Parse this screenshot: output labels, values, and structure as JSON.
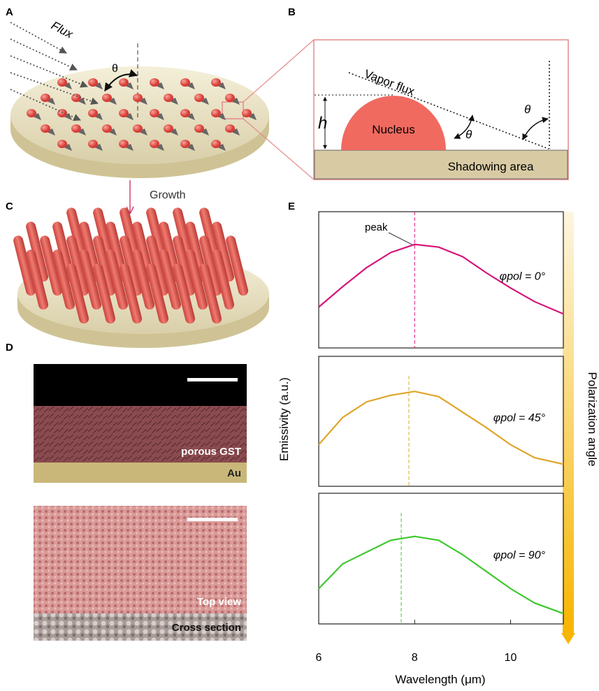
{
  "panel_labels": [
    "A",
    "B",
    "C",
    "D",
    "E"
  ],
  "panel_a": {
    "flux": "Flux",
    "theta": "θ"
  },
  "panel_b": {
    "vapor_flux": "Vapor flux",
    "nucleus": "Nucleus",
    "h": "h",
    "theta": "θ",
    "shadowing_area": "Shadowing area"
  },
  "growth": "Growth",
  "panel_d": {
    "porous_gst": "porous GST",
    "au": "Au",
    "top_view": "Top view",
    "cross_section": "Cross section"
  },
  "chart_data": {
    "type": "line",
    "x_label": "Wavelength (μm)",
    "y_label": "Emissivity (a.u.)",
    "colorbar_label": "Polarization angle",
    "peak_label": "peak",
    "xlim": [
      6,
      11.1
    ],
    "xticks": [
      6,
      8,
      10
    ],
    "ylim": [
      0,
      1
    ],
    "x": [
      6,
      6.5,
      7,
      7.5,
      8,
      8.5,
      9,
      9.5,
      10,
      10.5,
      11.1
    ],
    "peak_x": [
      8.0,
      7.88,
      7.72
    ],
    "series": [
      {
        "name": "φpol = 0°",
        "color": "#d6157a",
        "values": [
          0.3,
          0.45,
          0.59,
          0.7,
          0.76,
          0.74,
          0.67,
          0.55,
          0.44,
          0.34,
          0.25
        ]
      },
      {
        "name": "φpol = 45°",
        "color": "#e0a52a",
        "values": [
          0.32,
          0.53,
          0.65,
          0.7,
          0.73,
          0.69,
          0.57,
          0.45,
          0.32,
          0.22,
          0.17
        ]
      },
      {
        "name": "φpol = 90°",
        "color": "#3ec82e",
        "values": [
          0.27,
          0.46,
          0.55,
          0.64,
          0.67,
          0.64,
          0.53,
          0.4,
          0.27,
          0.16,
          0.08
        ]
      }
    ]
  }
}
